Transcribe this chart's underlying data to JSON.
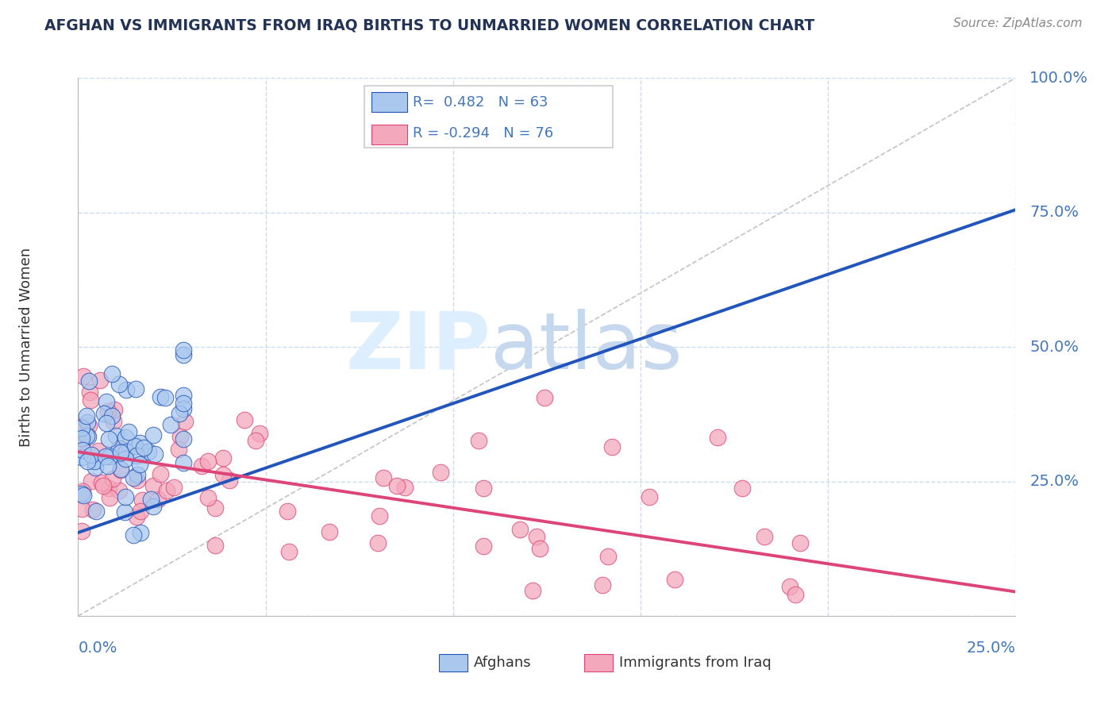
{
  "title": "AFGHAN VS IMMIGRANTS FROM IRAQ BIRTHS TO UNMARRIED WOMEN CORRELATION CHART",
  "source": "Source: ZipAtlas.com",
  "ylabel": "Births to Unmarried Women",
  "legend_blue_label": "Afghans",
  "legend_pink_label": "Immigrants from Iraq",
  "legend_blue_r": "R=  0.482",
  "legend_blue_n": "N = 63",
  "legend_pink_r": "R = -0.294",
  "legend_pink_n": "N = 76",
  "blue_color": "#aac8ee",
  "pink_color": "#f4a8bc",
  "blue_line_color": "#2255bb",
  "pink_line_color": "#dd4477",
  "background_color": "#ffffff",
  "grid_color": "#c8ddf0",
  "title_color": "#223355",
  "axis_label_color": "#4477bb",
  "xlim": [
    0.0,
    0.25
  ],
  "ylim": [
    0.0,
    1.0
  ],
  "blue_line_x0": 0.0,
  "blue_line_y0": 0.155,
  "blue_line_x1": 0.25,
  "blue_line_y1": 0.755,
  "pink_line_x0": 0.0,
  "pink_line_y0": 0.305,
  "pink_line_x1": 0.25,
  "pink_line_y1": 0.045
}
